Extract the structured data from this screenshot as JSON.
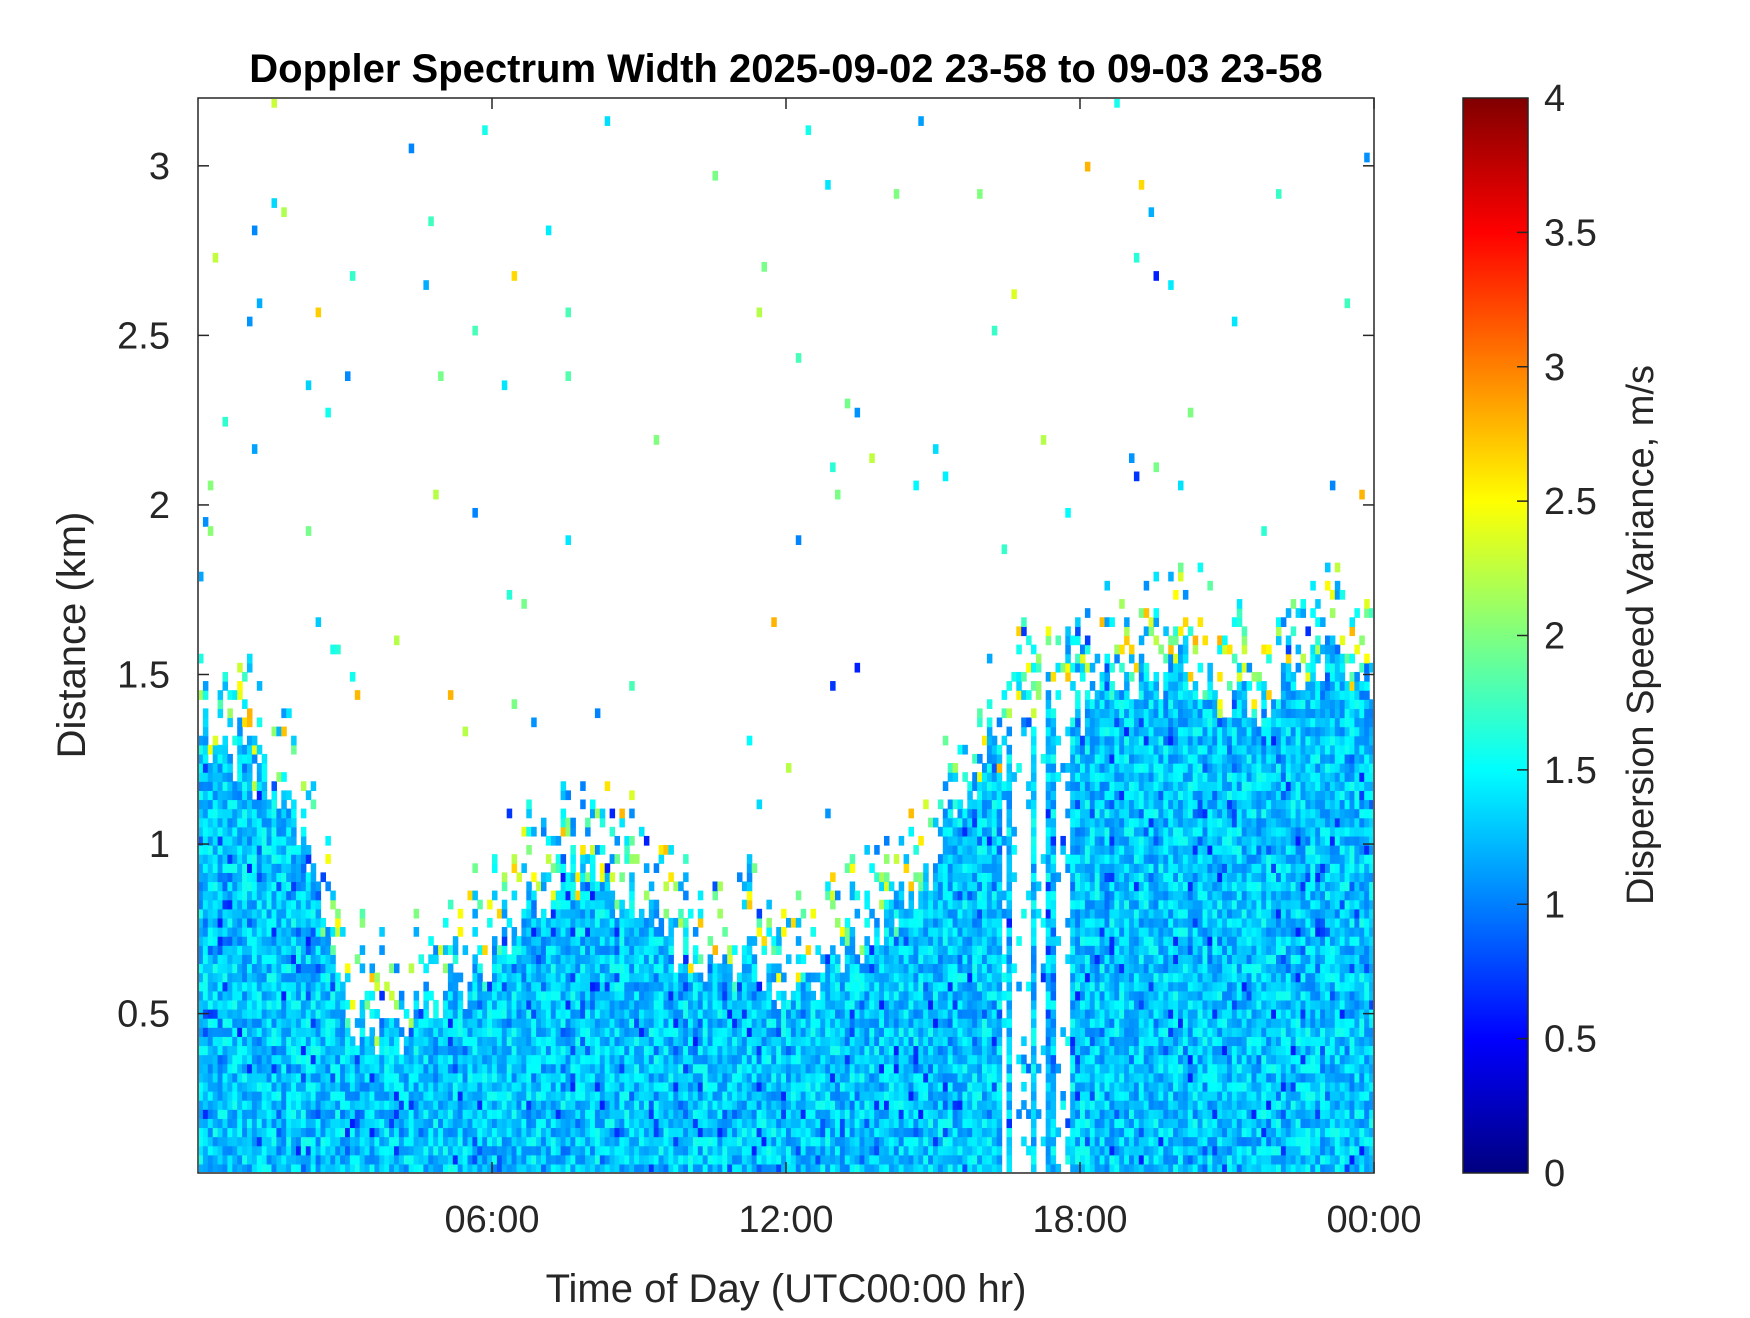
{
  "chart_data": {
    "type": "heatmap",
    "title": "Doppler Spectrum Width 2025-09-02 23-58 to 09-03 23-58",
    "xlabel": "Time of Day (UTC00:00 hr)",
    "ylabel": "Distance (km)",
    "colorbar_label": "Dispersion Speed Variance, m/s",
    "colormap": "jet",
    "xlim": [
      0,
      24
    ],
    "ylim": [
      0.03,
      3.2
    ],
    "clim": [
      0,
      4
    ],
    "x_ticks": [
      6,
      12,
      18,
      24
    ],
    "x_tick_labels": [
      "06:00",
      "12:00",
      "18:00",
      "00:00"
    ],
    "y_ticks": [
      0.5,
      1,
      1.5,
      2,
      2.5,
      3
    ],
    "y_tick_labels": [
      "0.5",
      "1",
      "1.5",
      "2",
      "2.5",
      "3"
    ],
    "colorbar_ticks": [
      0,
      0.5,
      1,
      1.5,
      2,
      2.5,
      3,
      3.5,
      4
    ],
    "colorbar_tick_labels": [
      "0",
      "0.5",
      "1",
      "1.5",
      "2",
      "2.5",
      "3",
      "3.5",
      "4"
    ],
    "grid": false,
    "boundary_layer_top_km": {
      "hours": [
        0,
        1,
        2,
        3,
        4,
        5,
        6,
        7,
        8,
        9,
        10,
        11,
        12,
        13,
        14,
        15,
        16,
        17,
        18,
        19,
        20,
        21,
        22,
        23,
        24
      ],
      "values": [
        1.3,
        1.25,
        1.1,
        0.5,
        0.42,
        0.55,
        0.65,
        0.85,
        0.9,
        0.85,
        0.68,
        0.65,
        0.6,
        0.65,
        0.75,
        0.95,
        1.25,
        1.4,
        1.4,
        1.5,
        1.5,
        1.4,
        1.45,
        1.55,
        1.5
      ]
    },
    "typical_value_ms": [
      1.0,
      1.6
    ]
  }
}
